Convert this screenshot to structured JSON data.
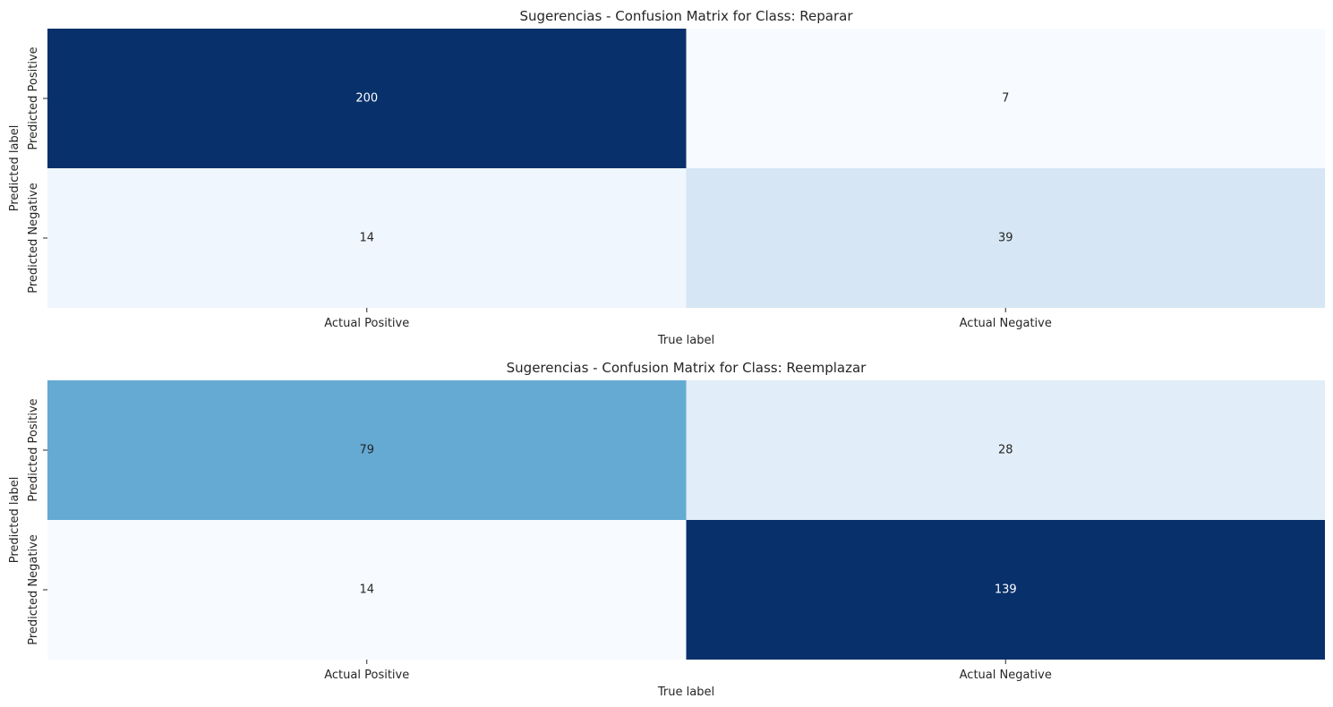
{
  "chart_data": [
    {
      "type": "heatmap",
      "title": "Sugerencias - Confusion Matrix for Class: Reparar",
      "xlabel": "True label",
      "ylabel": "Predicted label",
      "x_categories": [
        "Actual Positive",
        "Actual Negative"
      ],
      "y_categories": [
        "Predicted Positive",
        "Predicted Negative"
      ],
      "values": [
        [
          200,
          7
        ],
        [
          14,
          39
        ]
      ],
      "colormap": "Blues",
      "colorbar": false,
      "annotated": true
    },
    {
      "type": "heatmap",
      "title": "Sugerencias - Confusion Matrix for Class: Reemplazar",
      "xlabel": "True label",
      "ylabel": "Predicted label",
      "x_categories": [
        "Actual Positive",
        "Actual Negative"
      ],
      "y_categories": [
        "Predicted Positive",
        "Predicted Negative"
      ],
      "values": [
        [
          79,
          28
        ],
        [
          14,
          139
        ]
      ],
      "colormap": "Blues",
      "colorbar": false,
      "annotated": true
    }
  ]
}
